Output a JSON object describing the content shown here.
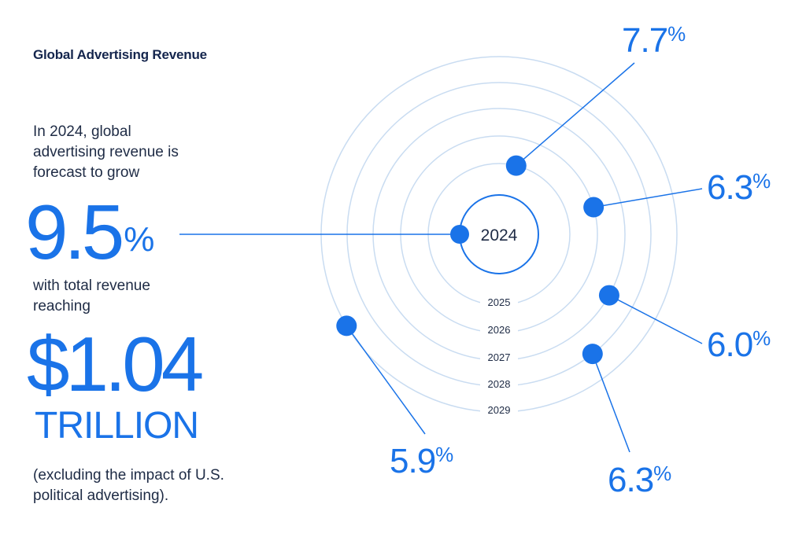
{
  "title": "Global Advertising Revenue",
  "intro_text": "In 2024, global advertising revenue is forecast to grow",
  "highlight_growth": "9.5",
  "highlight_growth_symbol": "%",
  "mid_text": "with total revenue reaching",
  "highlight_revenue": "$1.04",
  "highlight_revenue_unit": "TRILLION",
  "footnote": "(excluding the impact of U.S. political advertising).",
  "colors": {
    "accent": "#1a73e8",
    "text": "#1e2b45",
    "title": "#14254d",
    "ring": "#c9dcf1"
  },
  "chart_data": {
    "type": "radial",
    "center_label": "2024",
    "series": [
      {
        "year": "2024",
        "growth_label": "9.5%",
        "value": 9.5
      },
      {
        "year": "2025",
        "growth_label": "7.7%",
        "value": 7.7
      },
      {
        "year": "2026",
        "growth_label": "6.3%",
        "value": 6.3
      },
      {
        "year": "2027",
        "growth_label": "6.0%",
        "value": 6.0
      },
      {
        "year": "2028",
        "growth_label": "6.3%",
        "value": 6.3
      },
      {
        "year": "2029",
        "growth_label": "5.9%",
        "value": 5.9
      }
    ]
  }
}
